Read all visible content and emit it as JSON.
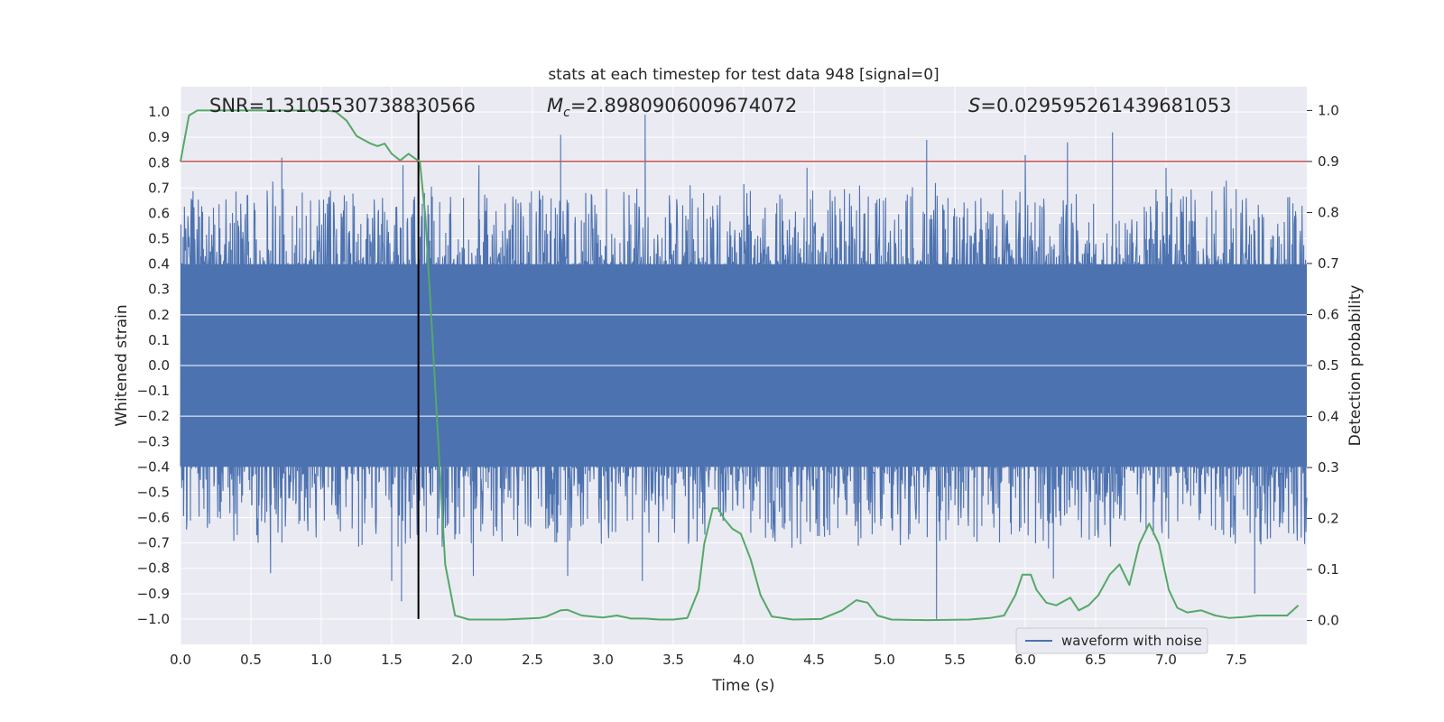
{
  "chart_data": {
    "type": "line",
    "title": "stats at each timestep for test data 948 [signal=0]",
    "xlabel": "Time (s)",
    "ylabel": "Whitened strain",
    "y2label": "Detection probability",
    "xlim": [
      0,
      8
    ],
    "ylim": [
      -1.1,
      1.1
    ],
    "y2lim": [
      -0.04667,
      1.04667
    ],
    "xticks": [
      0.0,
      0.5,
      1.0,
      1.5,
      2.0,
      2.5,
      3.0,
      3.5,
      4.0,
      4.5,
      5.0,
      5.5,
      6.0,
      6.5,
      7.0,
      7.5
    ],
    "xtick_labels": [
      "0.0",
      "0.5",
      "1.0",
      "1.5",
      "2.0",
      "2.5",
      "3.0",
      "3.5",
      "4.0",
      "4.5",
      "5.0",
      "5.5",
      "6.0",
      "6.5",
      "7.0",
      "7.5"
    ],
    "yticks": [
      1.0,
      0.9,
      0.8,
      0.7,
      0.6,
      0.5,
      0.4,
      0.3,
      0.2,
      0.1,
      0.0,
      -0.1,
      -0.2,
      -0.3,
      -0.4,
      -0.5,
      -0.6,
      -0.7,
      -0.8,
      -0.9,
      -1.0
    ],
    "ytick_labels": [
      "1.0",
      "0.9",
      "0.8",
      "0.7",
      "0.6",
      "0.5",
      "0.4",
      "0.3",
      "0.2",
      "0.1",
      "0.0",
      "−0.1",
      "−0.2",
      "−0.3",
      "−0.4",
      "−0.5",
      "−0.6",
      "−0.7",
      "−0.8",
      "−0.9",
      "−1.0"
    ],
    "y2ticks": [
      1.0,
      0.9,
      0.8,
      0.7,
      0.6,
      0.5,
      0.4,
      0.3,
      0.2,
      0.1,
      0.0
    ],
    "y2tick_labels": [
      "1.0",
      "0.9",
      "0.8",
      "0.7",
      "0.6",
      "0.5",
      "0.4",
      "0.3",
      "0.2",
      "0.1",
      "0.0"
    ],
    "grid": true,
    "legend": {
      "placement": "bottom-right",
      "entries": [
        "waveform with noise"
      ]
    },
    "annotations": {
      "snr": "SNR=1.3105530738830566",
      "mc_symbol": "M",
      "mc_sub": "c",
      "mc_value": "=2.8980906009674072",
      "s_symbol": "S",
      "s_value": "=0.029595261439681053"
    },
    "threshold": {
      "value": 0.9,
      "axis": "y2",
      "color": "#c44e52"
    },
    "vertical_marker": {
      "x": 1.69,
      "y_range": [
        -1.0,
        1.0
      ],
      "color": "#000000"
    },
    "waveform": {
      "name": "waveform with noise",
      "color": "#4c72b0",
      "description_of_envelope": "dense noise spanning roughly -0.4 to 0.4 with spikes to about ±1.0",
      "spikes_high": [
        {
          "x": 0.72,
          "y": 0.82
        },
        {
          "x": 1.58,
          "y": 0.79
        },
        {
          "x": 1.69,
          "y": 0.85
        },
        {
          "x": 2.7,
          "y": 0.91
        },
        {
          "x": 3.3,
          "y": 0.99
        },
        {
          "x": 5.3,
          "y": 0.89
        },
        {
          "x": 6.0,
          "y": 0.83
        },
        {
          "x": 6.3,
          "y": 0.88
        },
        {
          "x": 6.62,
          "y": 0.92
        },
        {
          "x": 2.12,
          "y": 0.79
        },
        {
          "x": 4.45,
          "y": 0.78
        },
        {
          "x": 7.0,
          "y": 0.78
        }
      ],
      "spikes_low": [
        {
          "x": 0.64,
          "y": -0.82
        },
        {
          "x": 1.5,
          "y": -0.85
        },
        {
          "x": 1.57,
          "y": -0.93
        },
        {
          "x": 2.08,
          "y": -0.83
        },
        {
          "x": 3.28,
          "y": -0.85
        },
        {
          "x": 5.37,
          "y": -1.0
        },
        {
          "x": 6.2,
          "y": -0.84
        },
        {
          "x": 7.63,
          "y": -0.9
        },
        {
          "x": 2.75,
          "y": -0.83
        }
      ]
    },
    "probability": {
      "name": "detection probability",
      "color": "#55a868",
      "axis": "y2",
      "x": [
        0.0,
        0.06,
        0.12,
        0.25,
        0.5,
        0.75,
        1.0,
        1.1,
        1.18,
        1.25,
        1.35,
        1.4,
        1.45,
        1.5,
        1.56,
        1.62,
        1.67,
        1.7,
        1.74,
        1.78,
        1.88,
        1.95,
        2.05,
        2.3,
        2.55,
        2.6,
        2.7,
        2.75,
        2.85,
        3.0,
        3.1,
        3.2,
        3.3,
        3.4,
        3.5,
        3.6,
        3.68,
        3.72,
        3.78,
        3.82,
        3.86,
        3.92,
        3.98,
        4.05,
        4.12,
        4.2,
        4.35,
        4.55,
        4.7,
        4.8,
        4.88,
        4.95,
        5.05,
        5.3,
        5.6,
        5.75,
        5.85,
        5.93,
        5.98,
        6.04,
        6.08,
        6.15,
        6.22,
        6.32,
        6.38,
        6.45,
        6.52,
        6.6,
        6.67,
        6.74,
        6.81,
        6.88,
        6.95,
        7.02,
        7.08,
        7.15,
        7.25,
        7.35,
        7.45,
        7.55,
        7.65,
        7.8,
        7.86,
        7.94
      ],
      "y": [
        0.9,
        0.99,
        1.0,
        1.0,
        1.0,
        1.0,
        1.0,
        0.998,
        0.98,
        0.95,
        0.935,
        0.93,
        0.935,
        0.915,
        0.902,
        0.915,
        0.905,
        0.9,
        0.79,
        0.6,
        0.11,
        0.01,
        0.002,
        0.002,
        0.005,
        0.008,
        0.02,
        0.021,
        0.01,
        0.006,
        0.01,
        0.004,
        0.004,
        0.002,
        0.002,
        0.005,
        0.06,
        0.15,
        0.22,
        0.22,
        0.2,
        0.18,
        0.17,
        0.12,
        0.05,
        0.008,
        0.002,
        0.003,
        0.02,
        0.04,
        0.035,
        0.01,
        0.002,
        0.001,
        0.002,
        0.005,
        0.01,
        0.05,
        0.09,
        0.09,
        0.06,
        0.035,
        0.03,
        0.045,
        0.02,
        0.03,
        0.05,
        0.09,
        0.11,
        0.07,
        0.15,
        0.19,
        0.15,
        0.06,
        0.025,
        0.016,
        0.02,
        0.01,
        0.005,
        0.007,
        0.01,
        0.01,
        0.01,
        0.03
      ]
    }
  },
  "colors": {
    "plot_background": "#eaeaf2",
    "grid": "#ffffff",
    "waveform": "#4c72b0",
    "probability": "#55a868",
    "threshold": "#c44e52",
    "marker": "#000000"
  }
}
